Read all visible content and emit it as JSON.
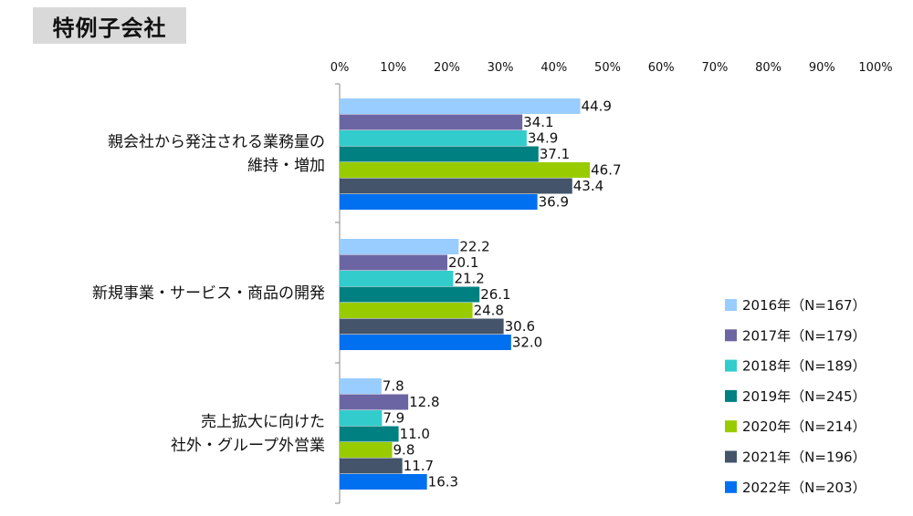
{
  "page_title": "特例子会社",
  "chart_data": {
    "type": "bar",
    "orientation": "horizontal",
    "xlim": [
      0,
      100
    ],
    "x_ticks": [
      "0%",
      "10%",
      "20%",
      "30%",
      "40%",
      "50%",
      "60%",
      "70%",
      "80%",
      "90%",
      "100%"
    ],
    "grid": false,
    "legend_position": "bottom-right",
    "categories": [
      {
        "lines": [
          "親会社から発注される業務量の",
          "維持・増加"
        ]
      },
      {
        "lines": [
          "新規事業・サービス・商品の開発"
        ]
      },
      {
        "lines": [
          "売上拡大に向けた",
          "社外・グループ外営業"
        ]
      }
    ],
    "series": [
      {
        "name": "2016年（N=167）",
        "color": "#99ccff",
        "values": [
          44.9,
          22.2,
          7.8
        ]
      },
      {
        "name": "2017年（N=179）",
        "color": "#6b66a3",
        "values": [
          34.1,
          20.1,
          12.8
        ]
      },
      {
        "name": "2018年（N=189）",
        "color": "#33cccc",
        "values": [
          34.9,
          21.2,
          7.9
        ]
      },
      {
        "name": "2019年（N=245）",
        "color": "#008080",
        "values": [
          37.1,
          26.1,
          11.0
        ]
      },
      {
        "name": "2020年（N=214）",
        "color": "#99cc00",
        "values": [
          46.7,
          24.8,
          9.8
        ]
      },
      {
        "name": "2021年（N=196）",
        "color": "#44546a",
        "values": [
          43.4,
          30.6,
          11.7
        ]
      },
      {
        "name": "2022年（N=203）",
        "color": "#0070f0",
        "values": [
          36.9,
          32.0,
          16.3
        ]
      }
    ]
  }
}
